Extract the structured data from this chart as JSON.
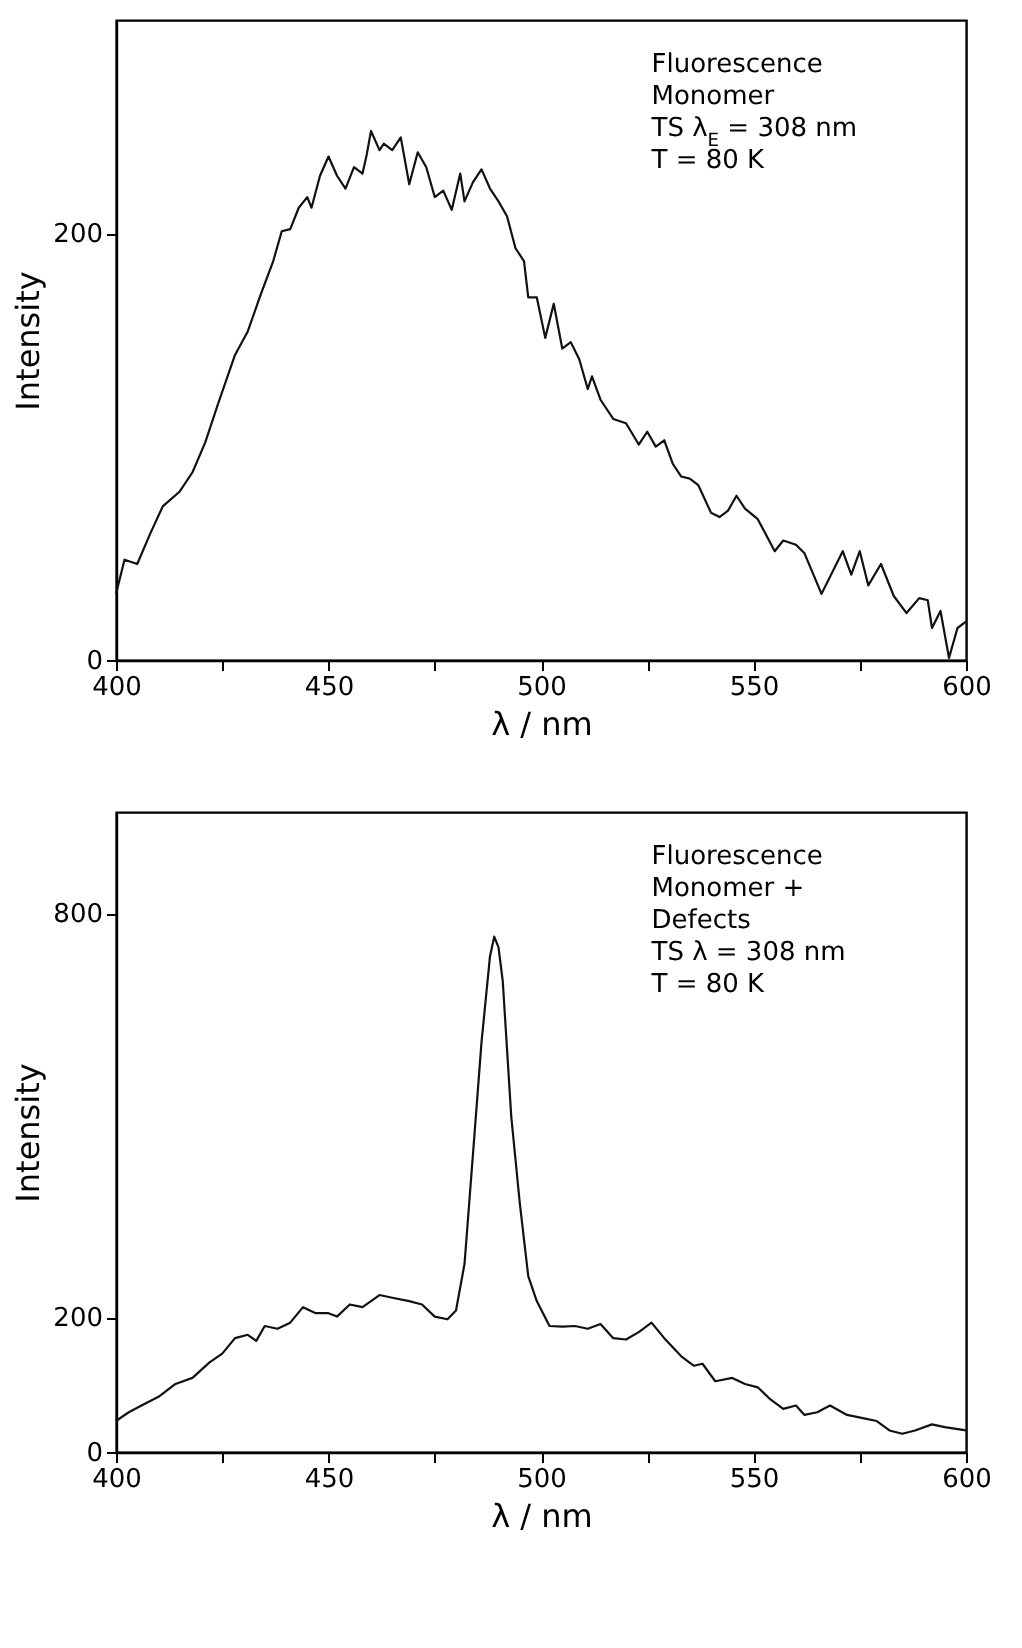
{
  "chart_data": [
    {
      "type": "line",
      "xlabel": "λ / nm",
      "ylabel": "Intensity",
      "xlim": [
        400,
        600
      ],
      "ylim": [
        0,
        300
      ],
      "xticks": [
        400,
        {
          "value": 425,
          "label": null
        },
        450,
        {
          "value": 475,
          "label": null
        },
        500,
        {
          "value": 525,
          "label": null
        },
        550,
        {
          "value": 575,
          "label": null
        },
        600
      ],
      "yticks": [
        0,
        200
      ],
      "annotations": [
        "Fluorescence",
        "Monomer",
        "TS λ$_{E}$ = 308 nm",
        "T = 80 K"
      ],
      "x": [
        400,
        402,
        405,
        408,
        411,
        415,
        418,
        421,
        424,
        428,
        431,
        434,
        437,
        439,
        441,
        443,
        445,
        446,
        448,
        450,
        452,
        454,
        456,
        458,
        459,
        460,
        462,
        463,
        465,
        467,
        469,
        471,
        473,
        475,
        477,
        479,
        481,
        482,
        484,
        486,
        488,
        490,
        492,
        494,
        496,
        497,
        499,
        501,
        503,
        505,
        507,
        509,
        511,
        512,
        514,
        517,
        520,
        523,
        525,
        527,
        529,
        531,
        533,
        535,
        537,
        540,
        542,
        544,
        546,
        548,
        551,
        555,
        557,
        560,
        562,
        566,
        571,
        573,
        575,
        577,
        580,
        583,
        586,
        589,
        591,
        592,
        594,
        596,
        598,
        600
      ],
      "series": [
        {
          "color": "#111111",
          "values": [
            31,
            47,
            45,
            59,
            72,
            79,
            88,
            102,
            120,
            143,
            154,
            171,
            187,
            201,
            202,
            212,
            217,
            212,
            227,
            236,
            227,
            221,
            231,
            228,
            237,
            248,
            239,
            242,
            239,
            245,
            223,
            238,
            231,
            217,
            220,
            211,
            228,
            215,
            224,
            230,
            221,
            215,
            208,
            193,
            187,
            170,
            170,
            151,
            167,
            146,
            149,
            141,
            127,
            133,
            122,
            113,
            111,
            101,
            107,
            100,
            103,
            92,
            86,
            85,
            82,
            69,
            67,
            70,
            77,
            71,
            66,
            51,
            56,
            54,
            50,
            31,
            51,
            40,
            51,
            35,
            45,
            30,
            22,
            29,
            28,
            15,
            23,
            1,
            15,
            18
          ]
        }
      ]
    },
    {
      "type": "line",
      "xlabel": "λ / nm",
      "ylabel": "Intensity",
      "xlim": [
        400,
        600
      ],
      "ylim": [
        0,
        950
      ],
      "xticks": [
        400,
        {
          "value": 425,
          "label": null
        },
        450,
        {
          "value": 475,
          "label": null
        },
        500,
        {
          "value": 525,
          "label": null
        },
        550,
        {
          "value": 575,
          "label": null
        },
        600
      ],
      "yticks": [
        0,
        200,
        800
      ],
      "annotations": [
        "Fluorescence",
        "Monomer +",
        "Defects",
        "TS λ  = 308 nm",
        "T = 80 K"
      ],
      "x": [
        400,
        403,
        406,
        410,
        414,
        418,
        422,
        425,
        428,
        431,
        433,
        435,
        438,
        441,
        444,
        447,
        450,
        452,
        455,
        458,
        462,
        465,
        469,
        472,
        475,
        478,
        480,
        482,
        484,
        486,
        488,
        489,
        490,
        491,
        493,
        495,
        497,
        499,
        502,
        505,
        508,
        511,
        514,
        517,
        520,
        523,
        526,
        529,
        533,
        536,
        538,
        541,
        545,
        548,
        551,
        554,
        557,
        560,
        562,
        565,
        568,
        572,
        576,
        579,
        582,
        585,
        588,
        592,
        595,
        600
      ],
      "series": [
        {
          "color": "#111111",
          "values": [
            46,
            59,
            69,
            82,
            101,
            110,
            133,
            146,
            169,
            174,
            165,
            187,
            183,
            192,
            215,
            206,
            206,
            201,
            219,
            215,
            233,
            229,
            224,
            219,
            201,
            197,
            210,
            279,
            443,
            608,
            736,
            765,
            749,
            699,
            498,
            370,
            261,
            224,
            187,
            186,
            187,
            183,
            190,
            169,
            167,
            178,
            192,
            169,
            142,
            128,
            131,
            105,
            110,
            101,
            96,
            78,
            64,
            69,
            55,
            59,
            69,
            55,
            50,
            46,
            32,
            27,
            32,
            41,
            37,
            32
          ]
        }
      ]
    }
  ]
}
